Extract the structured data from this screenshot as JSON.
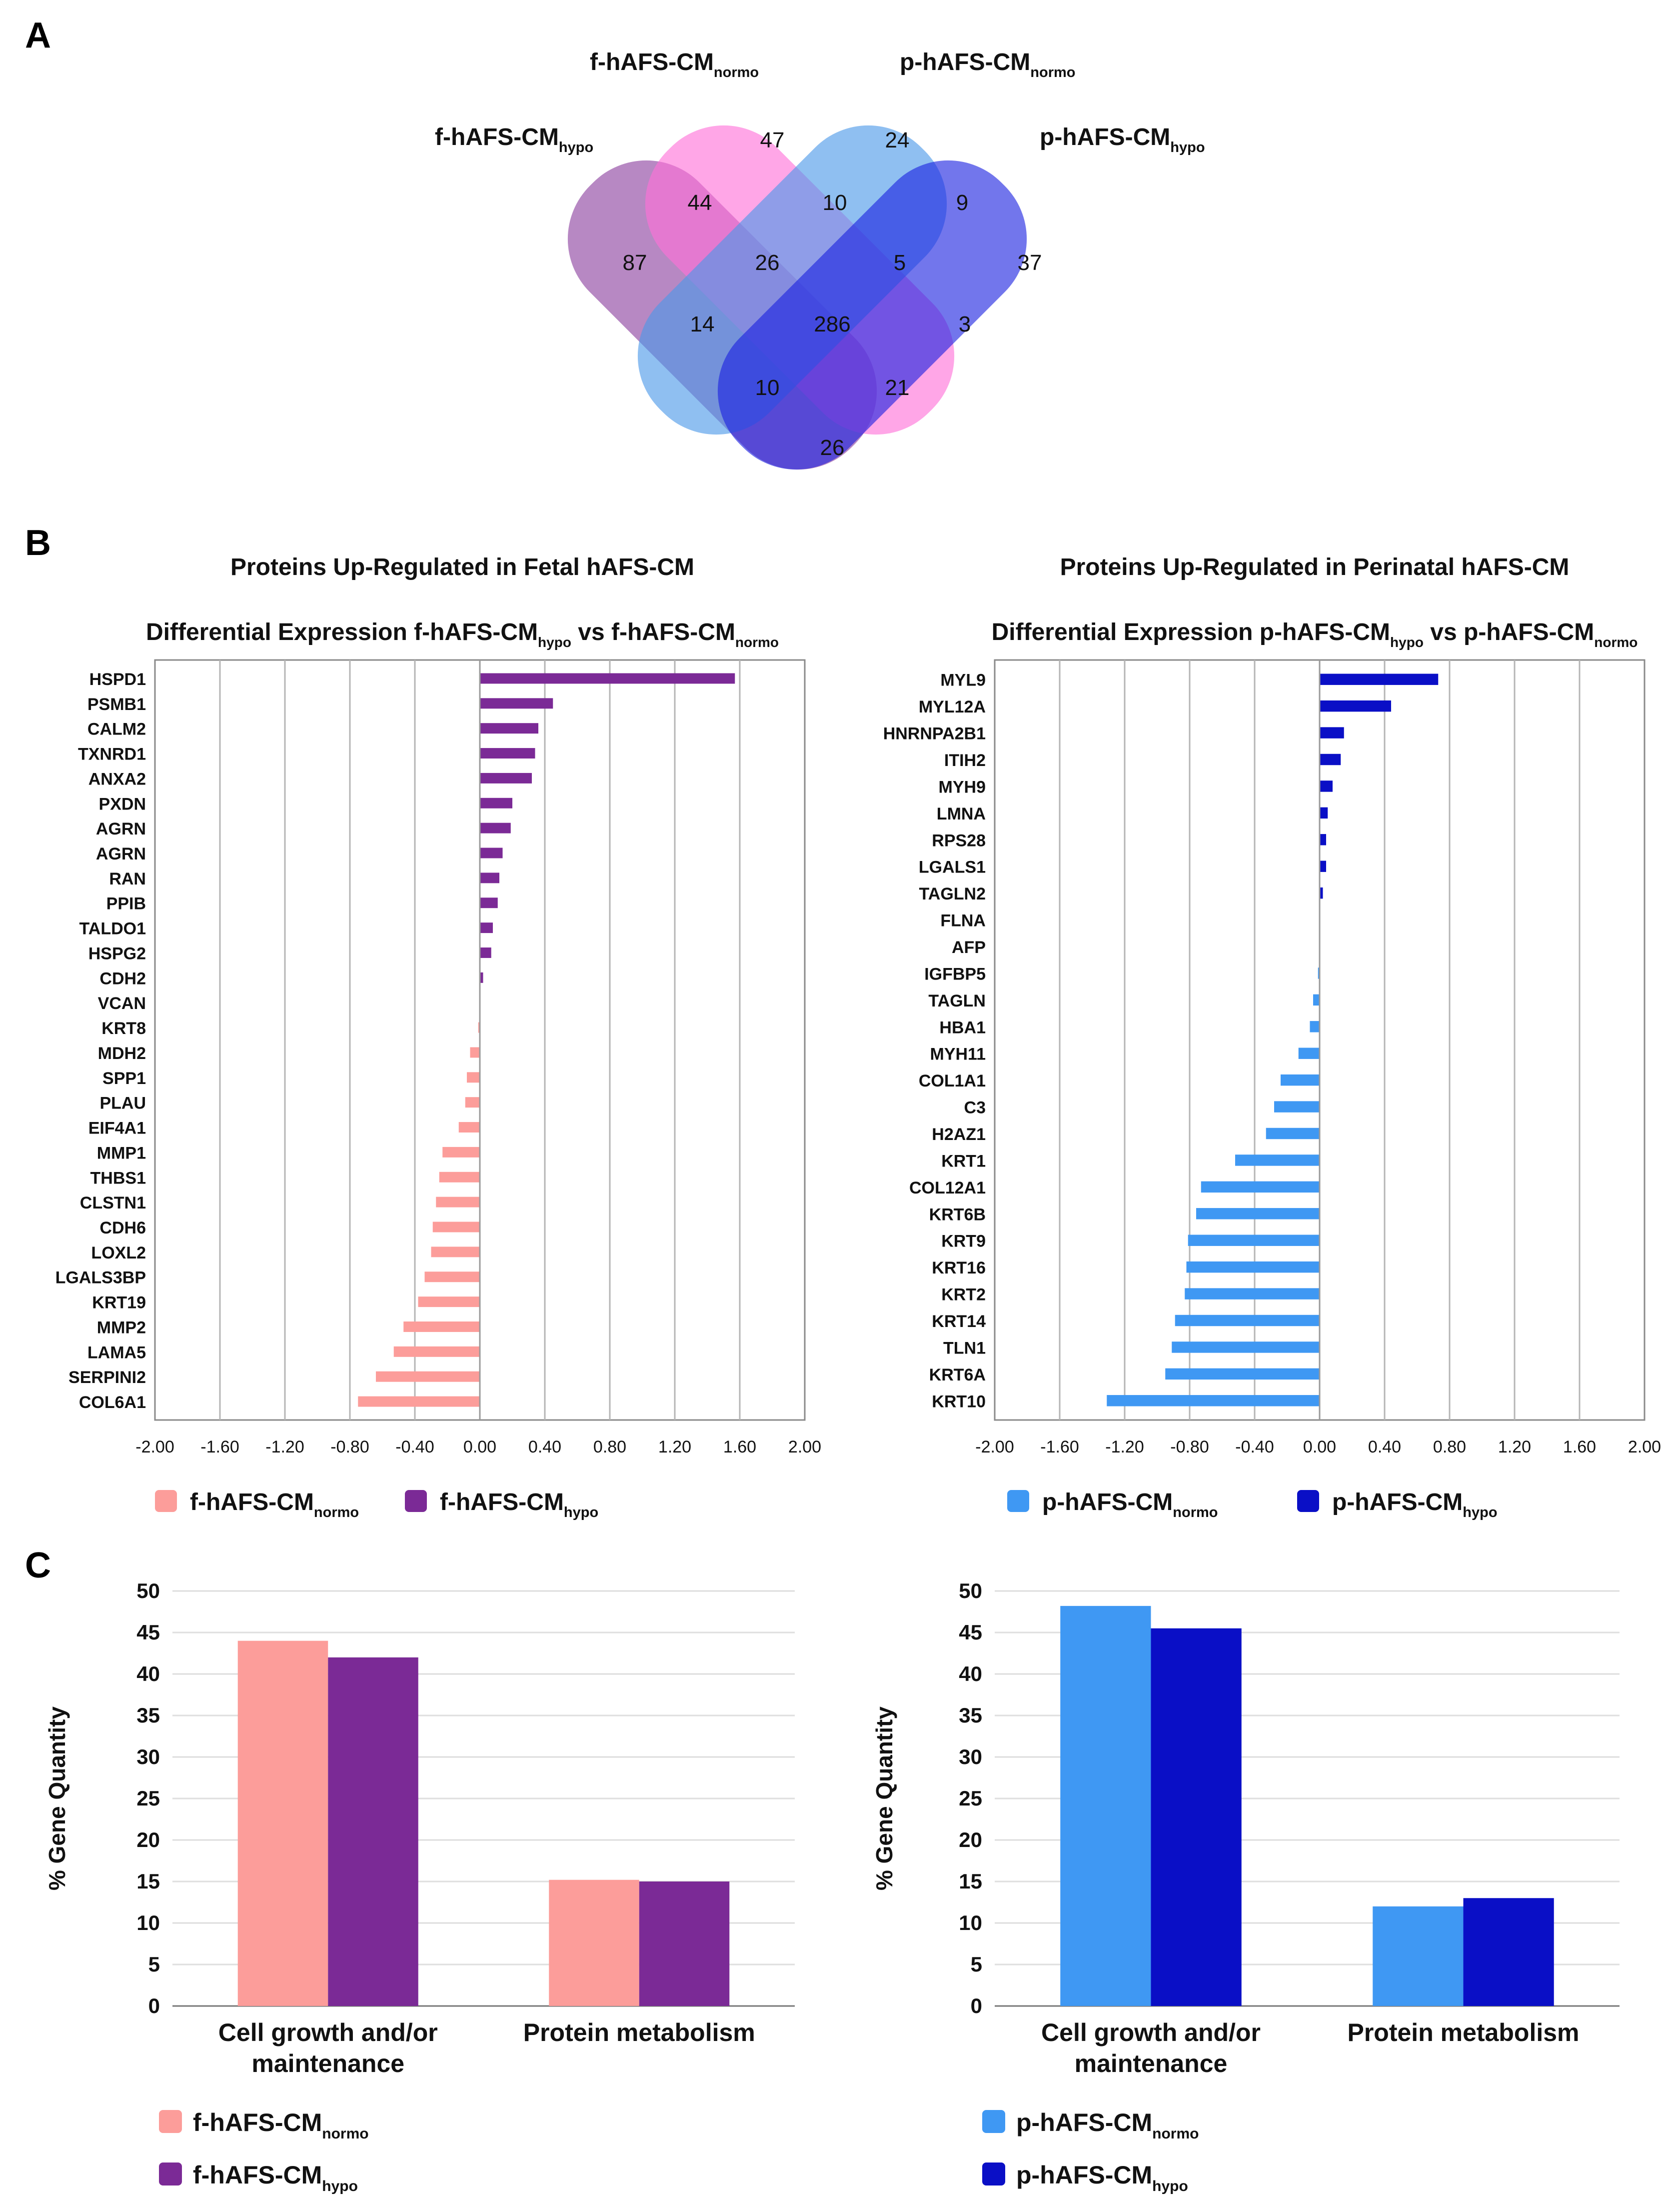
{
  "figure": {
    "panel_letters": {
      "a": "A",
      "b": "B",
      "c": "C"
    }
  },
  "series_styles": {
    "f_normo": {
      "name": "f-hAFS-CM",
      "sub": "normo",
      "color": "#fc9d9a",
      "venn_color": "#ff6fd8"
    },
    "f_hypo": {
      "name": "f-hAFS-CM",
      "sub": "hypo",
      "color": "#7b2a96",
      "venn_color": "#8a3f9e"
    },
    "p_normo": {
      "name": "p-hAFS-CM",
      "sub": "normo",
      "color": "#3f98f3",
      "venn_color": "#4a97e8"
    },
    "p_hypo": {
      "name": "p-hAFS-CM",
      "sub": "hypo",
      "color": "#0a0fc6",
      "venn_color": "#1b22e0"
    }
  },
  "chart_data": [
    {
      "type": "venn",
      "panel": "A",
      "sets": [
        {
          "key": "f_hypo",
          "name": "f-hAFS-CM",
          "sub": "hypo"
        },
        {
          "key": "f_normo",
          "name": "f-hAFS-CM",
          "sub": "normo"
        },
        {
          "key": "p_normo",
          "name": "p-hAFS-CM",
          "sub": "normo"
        },
        {
          "key": "p_hypo",
          "name": "p-hAFS-CM",
          "sub": "hypo"
        }
      ],
      "regions": [
        {
          "sets": [
            "f_normo"
          ],
          "value": 47
        },
        {
          "sets": [
            "p_normo"
          ],
          "value": 24
        },
        {
          "sets": [
            "f_hypo",
            "f_normo"
          ],
          "value": 44
        },
        {
          "sets": [
            "f_normo",
            "p_normo"
          ],
          "value": 10
        },
        {
          "sets": [
            "p_normo",
            "p_hypo"
          ],
          "value": 9
        },
        {
          "sets": [
            "f_hypo"
          ],
          "value": 87
        },
        {
          "sets": [
            "f_hypo",
            "f_normo",
            "p_normo"
          ],
          "value": 26
        },
        {
          "sets": [
            "f_normo",
            "p_normo",
            "p_hypo"
          ],
          "value": 5
        },
        {
          "sets": [
            "p_hypo"
          ],
          "value": 37
        },
        {
          "sets": [
            "f_hypo",
            "p_normo"
          ],
          "value": 14
        },
        {
          "sets": [
            "f_hypo",
            "f_normo",
            "p_normo",
            "p_hypo"
          ],
          "value": 286
        },
        {
          "sets": [
            "f_normo",
            "p_hypo"
          ],
          "value": 3
        },
        {
          "sets": [
            "f_hypo",
            "p_normo",
            "p_hypo"
          ],
          "value": 10
        },
        {
          "sets": [
            "f_hypo",
            "f_normo",
            "p_hypo"
          ],
          "value": 21
        },
        {
          "sets": [
            "f_hypo",
            "p_hypo"
          ],
          "value": 26
        }
      ]
    },
    {
      "type": "bar",
      "orientation": "horizontal",
      "panel": "B",
      "title": "Proteins Up-Regulated in Fetal hAFS-CM",
      "subtitle": {
        "prefix": "Differential Expression f-hAFS-CM",
        "sub1": "hypo",
        "mid": " vs f-hAFS-CM",
        "sub2": "normo"
      },
      "xlim": [
        -2,
        2
      ],
      "xticks": [
        "-2.00",
        "-1.60",
        "-1.20",
        "-0.80",
        "-0.40",
        "0.00",
        "0.40",
        "0.80",
        "1.20",
        "1.60",
        "2.00"
      ],
      "neg_series": "f_normo",
      "pos_series": "f_hypo",
      "legend": [
        "f_normo",
        "f_hypo"
      ],
      "categories": [
        "HSPD1",
        "PSMB1",
        "CALM2",
        "TXNRD1",
        "ANXA2",
        "PXDN",
        "AGRN",
        "AGRN",
        "RAN",
        "PPIB",
        "TALDO1",
        "HSPG2",
        "CDH2",
        "VCAN",
        "KRT8",
        "MDH2",
        "SPP1",
        "PLAU",
        "EIF4A1",
        "MMP1",
        "THBS1",
        "CLSTN1",
        "CDH6",
        "LOXL2",
        "LGALS3BP",
        "KRT19",
        "MMP2",
        "LAMA5",
        "SERPINI2",
        "COL6A1"
      ],
      "values": [
        1.57,
        0.45,
        0.36,
        0.34,
        0.32,
        0.2,
        0.19,
        0.14,
        0.12,
        0.11,
        0.08,
        0.07,
        0.02,
        0.0,
        -0.01,
        -0.06,
        -0.08,
        -0.09,
        -0.13,
        -0.23,
        -0.25,
        -0.27,
        -0.29,
        -0.3,
        -0.34,
        -0.38,
        -0.47,
        -0.53,
        -0.64,
        -0.75
      ]
    },
    {
      "type": "bar",
      "orientation": "horizontal",
      "panel": "B",
      "title": "Proteins Up-Regulated in Perinatal hAFS-CM",
      "subtitle": {
        "prefix": "Differential Expression p-hAFS-CM",
        "sub1": "hypo",
        "mid": " vs p-hAFS-CM",
        "sub2": "normo"
      },
      "xlim": [
        -2,
        2
      ],
      "xticks": [
        "-2.00",
        "-1.60",
        "-1.20",
        "-0.80",
        "-0.40",
        "0.00",
        "0.40",
        "0.80",
        "1.20",
        "1.60",
        "2.00"
      ],
      "neg_series": "p_normo",
      "pos_series": "p_hypo",
      "legend": [
        "p_normo",
        "p_hypo"
      ],
      "categories": [
        "MYL9",
        "MYL12A",
        "HNRNPA2B1",
        "ITIH2",
        "MYH9",
        "LMNA",
        "RPS28",
        "LGALS1",
        "TAGLN2",
        "FLNA",
        "AFP",
        "IGFBP5",
        "TAGLN",
        "HBA1",
        "MYH11",
        "COL1A1",
        "C3",
        "H2AZ1",
        "KRT1",
        "COL12A1",
        "KRT6B",
        "KRT9",
        "KRT16",
        "KRT2",
        "KRT14",
        "TLN1",
        "KRT6A",
        "KRT10"
      ],
      "values": [
        0.73,
        0.44,
        0.15,
        0.13,
        0.08,
        0.05,
        0.04,
        0.04,
        0.02,
        0.0,
        0.0,
        -0.01,
        -0.04,
        -0.06,
        -0.13,
        -0.24,
        -0.28,
        -0.33,
        -0.52,
        -0.73,
        -0.76,
        -0.81,
        -0.82,
        -0.83,
        -0.89,
        -0.91,
        -0.95,
        -1.31
      ]
    },
    {
      "type": "bar",
      "panel": "C",
      "ylabel": "% Gene Quantity",
      "ylim": [
        0,
        50
      ],
      "yticks": [
        0,
        5,
        10,
        15,
        20,
        25,
        30,
        35,
        40,
        45,
        50
      ],
      "categories": [
        [
          "Cell growth and/or",
          "maintenance"
        ],
        [
          "Protein metabolism"
        ]
      ],
      "series": [
        {
          "key": "f_normo",
          "values": [
            44,
            15.2
          ]
        },
        {
          "key": "f_hypo",
          "values": [
            42,
            15
          ]
        }
      ]
    },
    {
      "type": "bar",
      "panel": "C",
      "ylabel": "% Gene Quantity",
      "ylim": [
        0,
        50
      ],
      "yticks": [
        0,
        5,
        10,
        15,
        20,
        25,
        30,
        35,
        40,
        45,
        50
      ],
      "categories": [
        [
          "Cell growth and/or",
          "maintenance"
        ],
        [
          "Protein metabolism"
        ]
      ],
      "series": [
        {
          "key": "p_normo",
          "values": [
            48.2,
            12
          ]
        },
        {
          "key": "p_hypo",
          "values": [
            45.5,
            13
          ]
        }
      ]
    }
  ]
}
